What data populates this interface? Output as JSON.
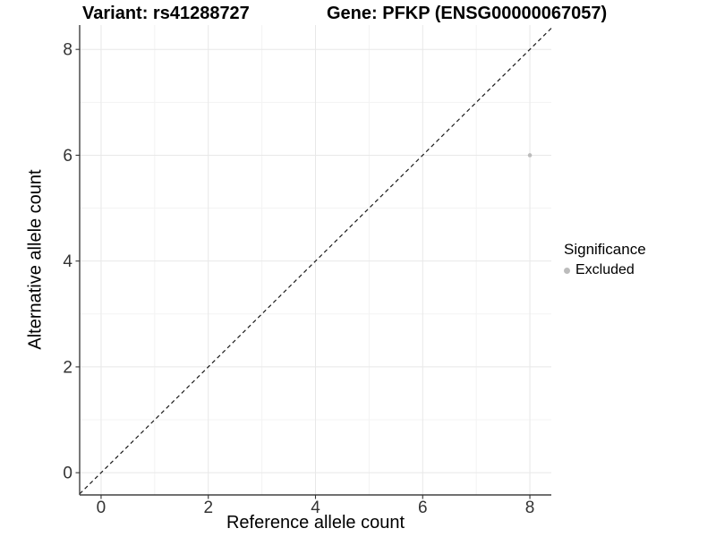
{
  "chart_data": {
    "type": "scatter",
    "title_left": "Variant: rs41288727",
    "title_right": "Gene: PFKP (ENSG00000067057)",
    "xlabel": "Reference allele count",
    "ylabel": "Alternative allele count",
    "xlim": [
      -0.4,
      8.4
    ],
    "ylim": [
      -0.42,
      8.46
    ],
    "x_major_ticks": [
      0,
      2,
      4,
      6,
      8
    ],
    "x_minor_ticks": [
      1,
      3,
      5,
      7
    ],
    "y_major_ticks": [
      0,
      2,
      4,
      6,
      8
    ],
    "y_minor_ticks": [
      1,
      3,
      5,
      7
    ],
    "grid": true,
    "points": [
      {
        "x": 8,
        "y": 6,
        "series": "Excluded"
      }
    ],
    "reference_line": {
      "type": "abline",
      "slope": 1,
      "intercept": 0,
      "style": "dashed"
    },
    "legend": {
      "title": "Significance",
      "position": "right",
      "items": [
        {
          "label": "Excluded",
          "color": "#bcbcbc"
        }
      ]
    },
    "colors": {
      "point": "#bcbcbc",
      "grid_major": "#e8e8e8",
      "grid_minor": "#f3f3f3",
      "axis_line": "#404040",
      "tick_mark": "#333333",
      "tick_text": "#333333",
      "diagonal": "#1a1a1a",
      "background": "#ffffff"
    }
  }
}
